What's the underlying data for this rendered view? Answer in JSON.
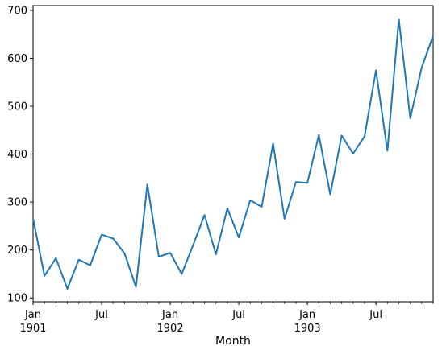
{
  "chart_data": {
    "type": "line",
    "title": "",
    "xlabel": "Month",
    "ylabel": "",
    "grid": false,
    "ylim": [
      92,
      710
    ],
    "x_range": [
      "1901-01",
      "1903-12"
    ],
    "yticks": [
      100,
      200,
      300,
      400,
      500,
      600,
      700
    ],
    "xticks": [
      {
        "x": "1901-01",
        "label": "Jan",
        "sublabel": "1901"
      },
      {
        "x": "1901-07",
        "label": "Jul",
        "sublabel": ""
      },
      {
        "x": "1902-01",
        "label": "Jan",
        "sublabel": "1902"
      },
      {
        "x": "1902-07",
        "label": "Jul",
        "sublabel": ""
      },
      {
        "x": "1903-01",
        "label": "Jan",
        "sublabel": "1903"
      },
      {
        "x": "1903-07",
        "label": "Jul",
        "sublabel": ""
      }
    ],
    "series": [
      {
        "color": "#1f77b4",
        "x": [
          "1901-01",
          "1901-02",
          "1901-03",
          "1901-04",
          "1901-05",
          "1901-06",
          "1901-07",
          "1901-08",
          "1901-09",
          "1901-10",
          "1901-11",
          "1901-12",
          "1902-01",
          "1902-02",
          "1902-03",
          "1902-04",
          "1902-05",
          "1902-06",
          "1902-07",
          "1902-08",
          "1902-09",
          "1902-10",
          "1902-11",
          "1902-12",
          "1903-01",
          "1903-02",
          "1903-03",
          "1903-04",
          "1903-05",
          "1903-06",
          "1903-07",
          "1903-08",
          "1903-09",
          "1903-10",
          "1903-11",
          "1903-12"
        ],
        "y": [
          266,
          146,
          183,
          119,
          180,
          168,
          232,
          224,
          193,
          123,
          337,
          186,
          194,
          150,
          210,
          273,
          191,
          287,
          226,
          304,
          290,
          422,
          265,
          342,
          340,
          440,
          316,
          439,
          401,
          437,
          575,
          407,
          682,
          475,
          581,
          647
        ]
      }
    ]
  }
}
